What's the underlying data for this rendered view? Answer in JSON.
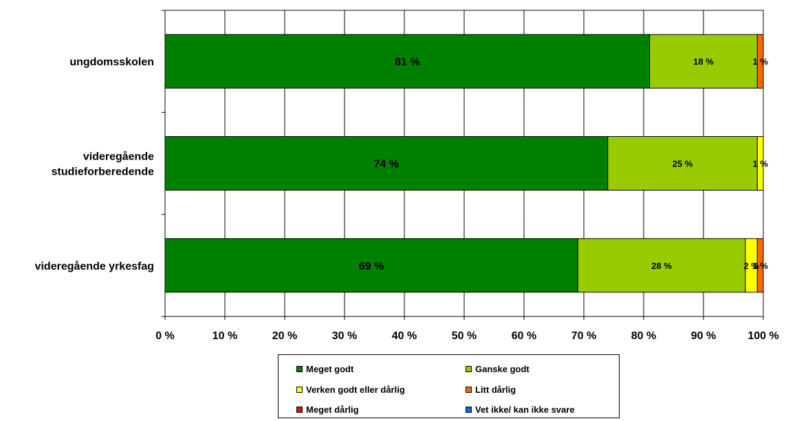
{
  "chart_data": {
    "type": "bar",
    "orientation": "horizontal",
    "stacked": "percent",
    "categories": [
      "ungdomsskolen",
      "videregående studieforberedende",
      "videregående yrkesfag"
    ],
    "category_lines": [
      [
        "ungdomsskolen"
      ],
      [
        "videregående",
        "studieforberedende"
      ],
      [
        "videregående yrkesfag"
      ]
    ],
    "series": [
      {
        "name": "Meget godt",
        "color": "#008000",
        "values": [
          81,
          74,
          69
        ]
      },
      {
        "name": "Ganske godt",
        "color": "#99CC00",
        "values": [
          18,
          25,
          28
        ]
      },
      {
        "name": "Verken godt eller dårlig",
        "color": "#FFFF00",
        "values": [
          0,
          1,
          2
        ]
      },
      {
        "name": "Litt dårlig",
        "color": "#FF6600",
        "values": [
          1,
          0,
          1
        ]
      },
      {
        "name": "Meget dårlig",
        "color": "#FF0000",
        "values": [
          0,
          0,
          0
        ]
      },
      {
        "name": "Vet ikke/ kan ikke svare",
        "color": "#0066FF",
        "values": [
          0,
          0,
          0
        ]
      }
    ],
    "data_labels": [
      [
        "81 %",
        "18 %",
        null,
        "1 %",
        null,
        null
      ],
      [
        "74 %",
        "25 %",
        "1 %",
        null,
        null,
        null
      ],
      [
        "69 %",
        "28 %",
        "2 %",
        "1 %",
        null,
        null
      ]
    ],
    "xlim": [
      0,
      100
    ],
    "x_ticks": [
      "0 %",
      "10 %",
      "20 %",
      "30 %",
      "40 %",
      "50 %",
      "60 %",
      "70 %",
      "80 %",
      "90 %",
      "100 %"
    ],
    "grid": true,
    "legend_position": "bottom",
    "title": "",
    "xlabel": "",
    "ylabel": ""
  }
}
